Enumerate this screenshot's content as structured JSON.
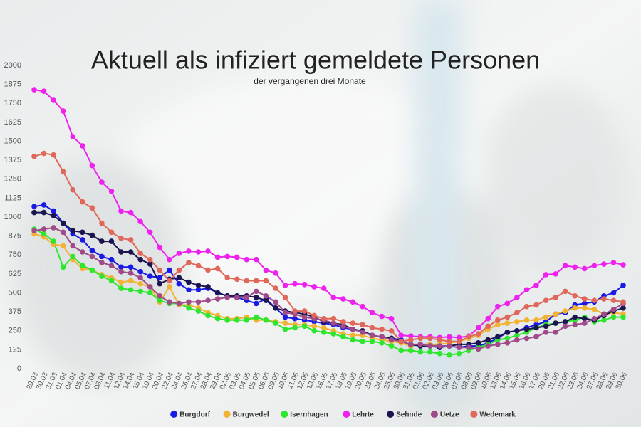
{
  "chart_data": {
    "type": "line",
    "title": "Aktuell als infiziert gemeldete Personen",
    "subtitle": "der vergangenen drei Monate",
    "categories": [
      "29.03",
      "30.03",
      "31.03",
      "01.04",
      "04.04",
      "05.04",
      "07.04",
      "08.04",
      "11.04",
      "12.04",
      "14.04",
      "15.04",
      "19.04",
      "20.04",
      "22.04",
      "24.04",
      "26.04",
      "27.04",
      "28.04",
      "29.04",
      "02.05",
      "03.05",
      "04.05",
      "05.05",
      "06.05",
      "09.05",
      "10.05",
      "11.05",
      "12.05",
      "13.05",
      "16.05",
      "17.05",
      "18.05",
      "19.05",
      "20.05",
      "23.05",
      "24.05",
      "25.05",
      "30.05",
      "31.05",
      "01.06",
      "02.06",
      "03.06",
      "06.06",
      "07.06",
      "08.06",
      "09.06",
      "10.06",
      "13.06",
      "14.06",
      "15.06",
      "16.06",
      "17.06",
      "20.06",
      "21.06",
      "22.06",
      "23.06",
      "24.06",
      "27.06",
      "28.06",
      "29.06",
      "30.06"
    ],
    "ylim": [
      0,
      2000
    ],
    "yticks": [
      0,
      125,
      250,
      375,
      500,
      625,
      750,
      875,
      1000,
      1125,
      1250,
      1375,
      1500,
      1625,
      1750,
      1875,
      2000
    ],
    "series": [
      {
        "name": "Burgdorf",
        "color": "#1a1ae6",
        "values": [
          1070,
          1080,
          1040,
          960,
          890,
          850,
          780,
          740,
          720,
          670,
          670,
          640,
          610,
          600,
          650,
          560,
          520,
          520,
          530,
          500,
          480,
          470,
          450,
          430,
          460,
          400,
          340,
          330,
          320,
          310,
          300,
          290,
          270,
          260,
          240,
          220,
          210,
          200,
          190,
          150,
          160,
          160,
          150,
          150,
          140,
          150,
          150,
          170,
          200,
          240,
          250,
          270,
          290,
          310,
          360,
          370,
          420,
          430,
          440,
          480,
          500,
          550
        ]
      },
      {
        "name": "Burgwedel",
        "color": "#f2b233",
        "values": [
          890,
          870,
          820,
          810,
          720,
          660,
          650,
          620,
          600,
          570,
          580,
          560,
          540,
          440,
          540,
          420,
          420,
          400,
          370,
          350,
          330,
          330,
          340,
          320,
          320,
          310,
          300,
          290,
          290,
          280,
          270,
          250,
          230,
          220,
          220,
          200,
          190,
          180,
          170,
          150,
          160,
          160,
          160,
          170,
          180,
          200,
          220,
          260,
          290,
          300,
          310,
          320,
          320,
          340,
          360,
          380,
          400,
          400,
          390,
          360,
          370,
          360
        ]
      },
      {
        "name": "Isernhagen",
        "color": "#2ee62e",
        "values": [
          920,
          890,
          840,
          670,
          740,
          680,
          650,
          610,
          580,
          530,
          520,
          510,
          500,
          450,
          430,
          430,
          400,
          380,
          350,
          330,
          320,
          320,
          320,
          340,
          320,
          300,
          260,
          270,
          280,
          250,
          240,
          230,
          210,
          190,
          180,
          180,
          170,
          150,
          120,
          120,
          110,
          110,
          100,
          90,
          100,
          120,
          140,
          160,
          190,
          200,
          220,
          240,
          270,
          290,
          300,
          310,
          320,
          340,
          310,
          320,
          340,
          340
        ]
      },
      {
        "name": "Lehrte",
        "color": "#ee22ee",
        "values": [
          1840,
          1830,
          1770,
          1700,
          1530,
          1470,
          1340,
          1230,
          1170,
          1040,
          1030,
          970,
          900,
          800,
          720,
          760,
          775,
          770,
          775,
          735,
          740,
          735,
          720,
          720,
          650,
          630,
          550,
          560,
          555,
          540,
          530,
          470,
          460,
          440,
          410,
          370,
          345,
          330,
          220,
          215,
          210,
          210,
          205,
          210,
          205,
          215,
          270,
          330,
          410,
          430,
          470,
          520,
          550,
          620,
          625,
          680,
          670,
          660,
          680,
          690,
          700,
          685
        ]
      },
      {
        "name": "Sehnde",
        "color": "#1a1450",
        "values": [
          1030,
          1030,
          1010,
          960,
          910,
          900,
          880,
          840,
          840,
          770,
          770,
          720,
          690,
          560,
          590,
          600,
          570,
          550,
          540,
          500,
          480,
          480,
          480,
          470,
          450,
          400,
          380,
          370,
          360,
          340,
          310,
          300,
          290,
          260,
          250,
          220,
          210,
          200,
          180,
          160,
          150,
          150,
          140,
          150,
          160,
          160,
          170,
          190,
          210,
          240,
          250,
          260,
          270,
          280,
          300,
          310,
          340,
          330,
          320,
          350,
          380,
          400
        ]
      },
      {
        "name": "Uetze",
        "color": "#a04a8a",
        "values": [
          910,
          920,
          930,
          900,
          810,
          770,
          740,
          700,
          680,
          640,
          630,
          600,
          540,
          480,
          440,
          430,
          440,
          440,
          450,
          460,
          470,
          470,
          470,
          510,
          480,
          440,
          370,
          360,
          340,
          330,
          320,
          300,
          280,
          260,
          240,
          220,
          210,
          190,
          180,
          160,
          160,
          150,
          150,
          150,
          140,
          140,
          130,
          150,
          160,
          170,
          190,
          200,
          210,
          240,
          240,
          280,
          290,
          300,
          330,
          360,
          390,
          430
        ]
      },
      {
        "name": "Wedemark",
        "color": "#e0685a",
        "values": [
          1400,
          1420,
          1410,
          1300,
          1180,
          1100,
          1060,
          960,
          900,
          860,
          850,
          760,
          720,
          650,
          580,
          650,
          700,
          680,
          650,
          660,
          600,
          590,
          580,
          580,
          580,
          530,
          470,
          380,
          380,
          350,
          330,
          330,
          310,
          300,
          290,
          270,
          260,
          250,
          180,
          190,
          200,
          200,
          190,
          180,
          180,
          210,
          230,
          280,
          320,
          340,
          370,
          410,
          420,
          450,
          470,
          510,
          480,
          460,
          450,
          460,
          450,
          440
        ]
      }
    ]
  }
}
